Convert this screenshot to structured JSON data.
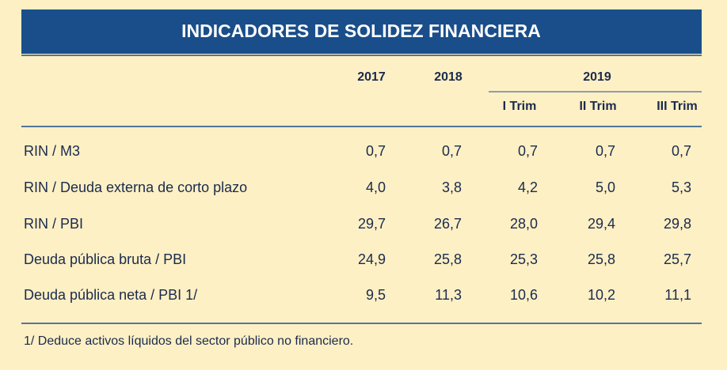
{
  "header": {
    "title": "INDICADORES DE SOLIDEZ FINANCIERA"
  },
  "table": {
    "columns": [
      "2017",
      "2018"
    ],
    "group": {
      "label": "2019",
      "subcolumns": [
        "I Trim",
        "II Trim",
        "III Trim"
      ]
    },
    "rows": [
      [
        "RIN / M3",
        "0,7",
        "0,7",
        "0,7",
        "0,7",
        "0,7"
      ],
      [
        "RIN / Deuda externa de corto plazo",
        "4,0",
        "3,8",
        "4,2",
        "5,0",
        "5,3"
      ],
      [
        "RIN / PBI",
        "29,7",
        "26,7",
        "28,0",
        "29,4",
        "29,8"
      ],
      [
        "Deuda pública bruta / PBI",
        "24,9",
        "25,8",
        "25,3",
        "25,8",
        "25,7"
      ],
      [
        "Deuda pública neta / PBI 1/",
        "9,5",
        "11,3",
        "10,6",
        "10,2",
        "11,1"
      ]
    ]
  },
  "footnote": "1/ Deduce activos líquidos del sector público no financiero."
}
